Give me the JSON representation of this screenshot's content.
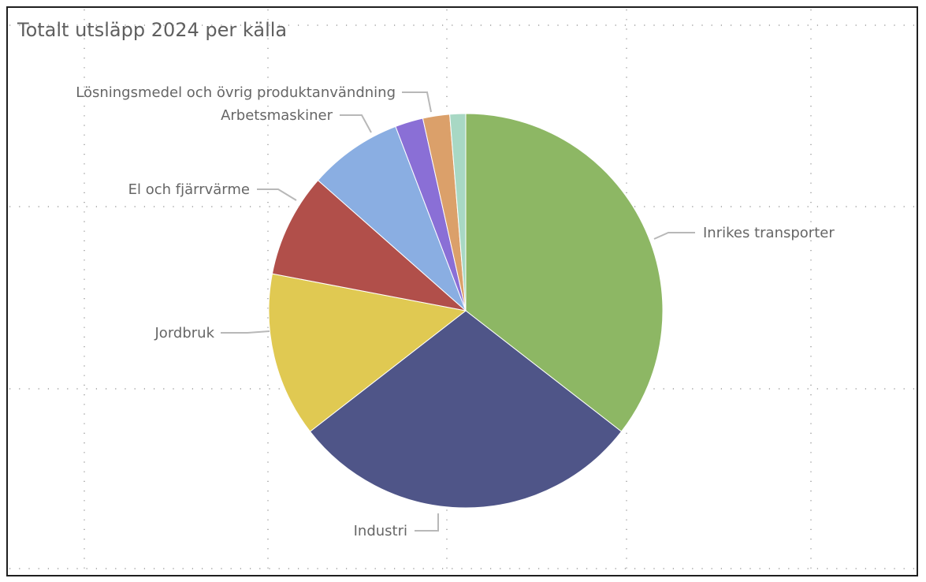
{
  "chart_data": {
    "type": "pie",
    "title": "Totalt utsläpp 2024 per källa",
    "categories": [
      "Inrikes transporter",
      "Industri",
      "Jordbruk",
      "El och fjärrvärme",
      "Arbetsmaskiner",
      "Lösningsmedel och övrig produktanvändning",
      "",
      ""
    ],
    "values": [
      35.5,
      29.0,
      13.5,
      8.5,
      7.7,
      2.3,
      2.2,
      1.3
    ],
    "colors": [
      "#8db764",
      "#4f5588",
      "#e0c952",
      "#b14f4a",
      "#8aaee2",
      "#8a6fd6",
      "#dba06a",
      "#a8d8c4"
    ],
    "labels_shown": [
      "Inrikes transporter",
      "Industri",
      "Jordbruk",
      "El och fjärrvärme",
      "Arbetsmaskiner",
      "Lösningsmedel och övrig produktanvändning"
    ],
    "start_angle_deg": 0,
    "direction": "clockwise",
    "grid": "dotted",
    "legend": "none"
  }
}
